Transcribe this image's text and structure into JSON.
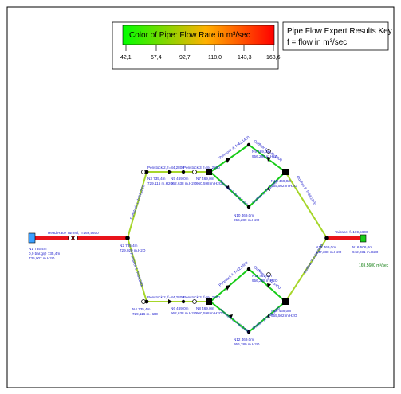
{
  "legend": {
    "title": "Color of Pipe: Flow Rate in m³/sec",
    "ticks": [
      "42,1",
      "67,4",
      "92,7",
      "118,0",
      "143,3",
      "168,6"
    ],
    "colors": [
      "#00ff00",
      "#ffb000",
      "#ff0000"
    ]
  },
  "key": {
    "title": "Pipe Flow Expert Results Key",
    "subtitle": "f = flow in m³/sec"
  },
  "colors": {
    "pipe_high": "#e8131a",
    "pipe_mid": "#a6d62a",
    "pipe_low": "#19cc19",
    "label_blue": "#1a1acc",
    "label_green": "#0a7a0a"
  },
  "pipes": {
    "headrace": "Head Race Tunnel, f=169,5600",
    "penstock1": "Penstock 1, f=84,2800",
    "penstock1b": "Penstock 1, f=84,2800",
    "penstock2u": "Penstock 2, f=84,2800",
    "penstock3u": "Penstock 3, f=84,2800",
    "penstock2l": "Penstock 2, f=84,2800",
    "penstock3l": "Penstock 3, f=84,2800",
    "penstock4u": "Penstock 4, f=42,1400",
    "penstock5u": "Penstock 5, f=42,1400",
    "penstock4l": "Penstock 4, f=42,1400",
    "penstock5l": "Penstock 5, f=42,1400",
    "outflow1u": "Outflow 1, f=42,1400",
    "outflow2u": "Outflow 2, f=42,1400",
    "outflow1l": "Outflow 1, f=42,1400",
    "outflow2l": "Outflow 2, f=42,1400",
    "outflow3u": "Outflow 3, f=84,2800",
    "outflow3l": "Outflow 3, f=84,2800",
    "tailrace": "Tailrace, f=169,5600"
  },
  "nodes": {
    "n1": [
      "N1  735,4m",
      "0,0 bar.g@ 735,4m",
      "735,907 m.H2O"
    ],
    "n2": [
      "N2  735,4m",
      "729,020 m.H2O"
    ],
    "n3": [
      "N3  735,4m",
      "729,116 m.H2O"
    ],
    "n4": [
      "N4  735,4m",
      "729,116 m.H2O"
    ],
    "n5": [
      "N5  469,0m",
      "962,638 m.H2O"
    ],
    "n6": [
      "N6  469,0m",
      "962,638 m.H2O"
    ],
    "n7": [
      "N7  469,0m",
      "960,598 m.H2O"
    ],
    "n8": [
      "N8  469,0m",
      "960,598 m.H2O"
    ],
    "n9": [
      "N9  469,0m",
      "956,289 m.H2O"
    ],
    "n10": [
      "N10  469,0m",
      "956,289 m.H2O"
    ],
    "n11": [
      "N11  469,0m",
      "956,289 m.H2O"
    ],
    "n12": [
      "N12  469,0m",
      "956,289 m.H2O"
    ],
    "n13": [
      "N13  469,0m",
      "955,502 m.H2O"
    ],
    "n14": [
      "N14  469,0m",
      "955,502 m.H2O"
    ],
    "n15": [
      "N15  469,0m",
      "947,380 m.H2O"
    ],
    "n16": [
      "N16  506,0m",
      "942,231 m.H2O"
    ]
  },
  "outflow_label": "169,5600 m³/sec"
}
